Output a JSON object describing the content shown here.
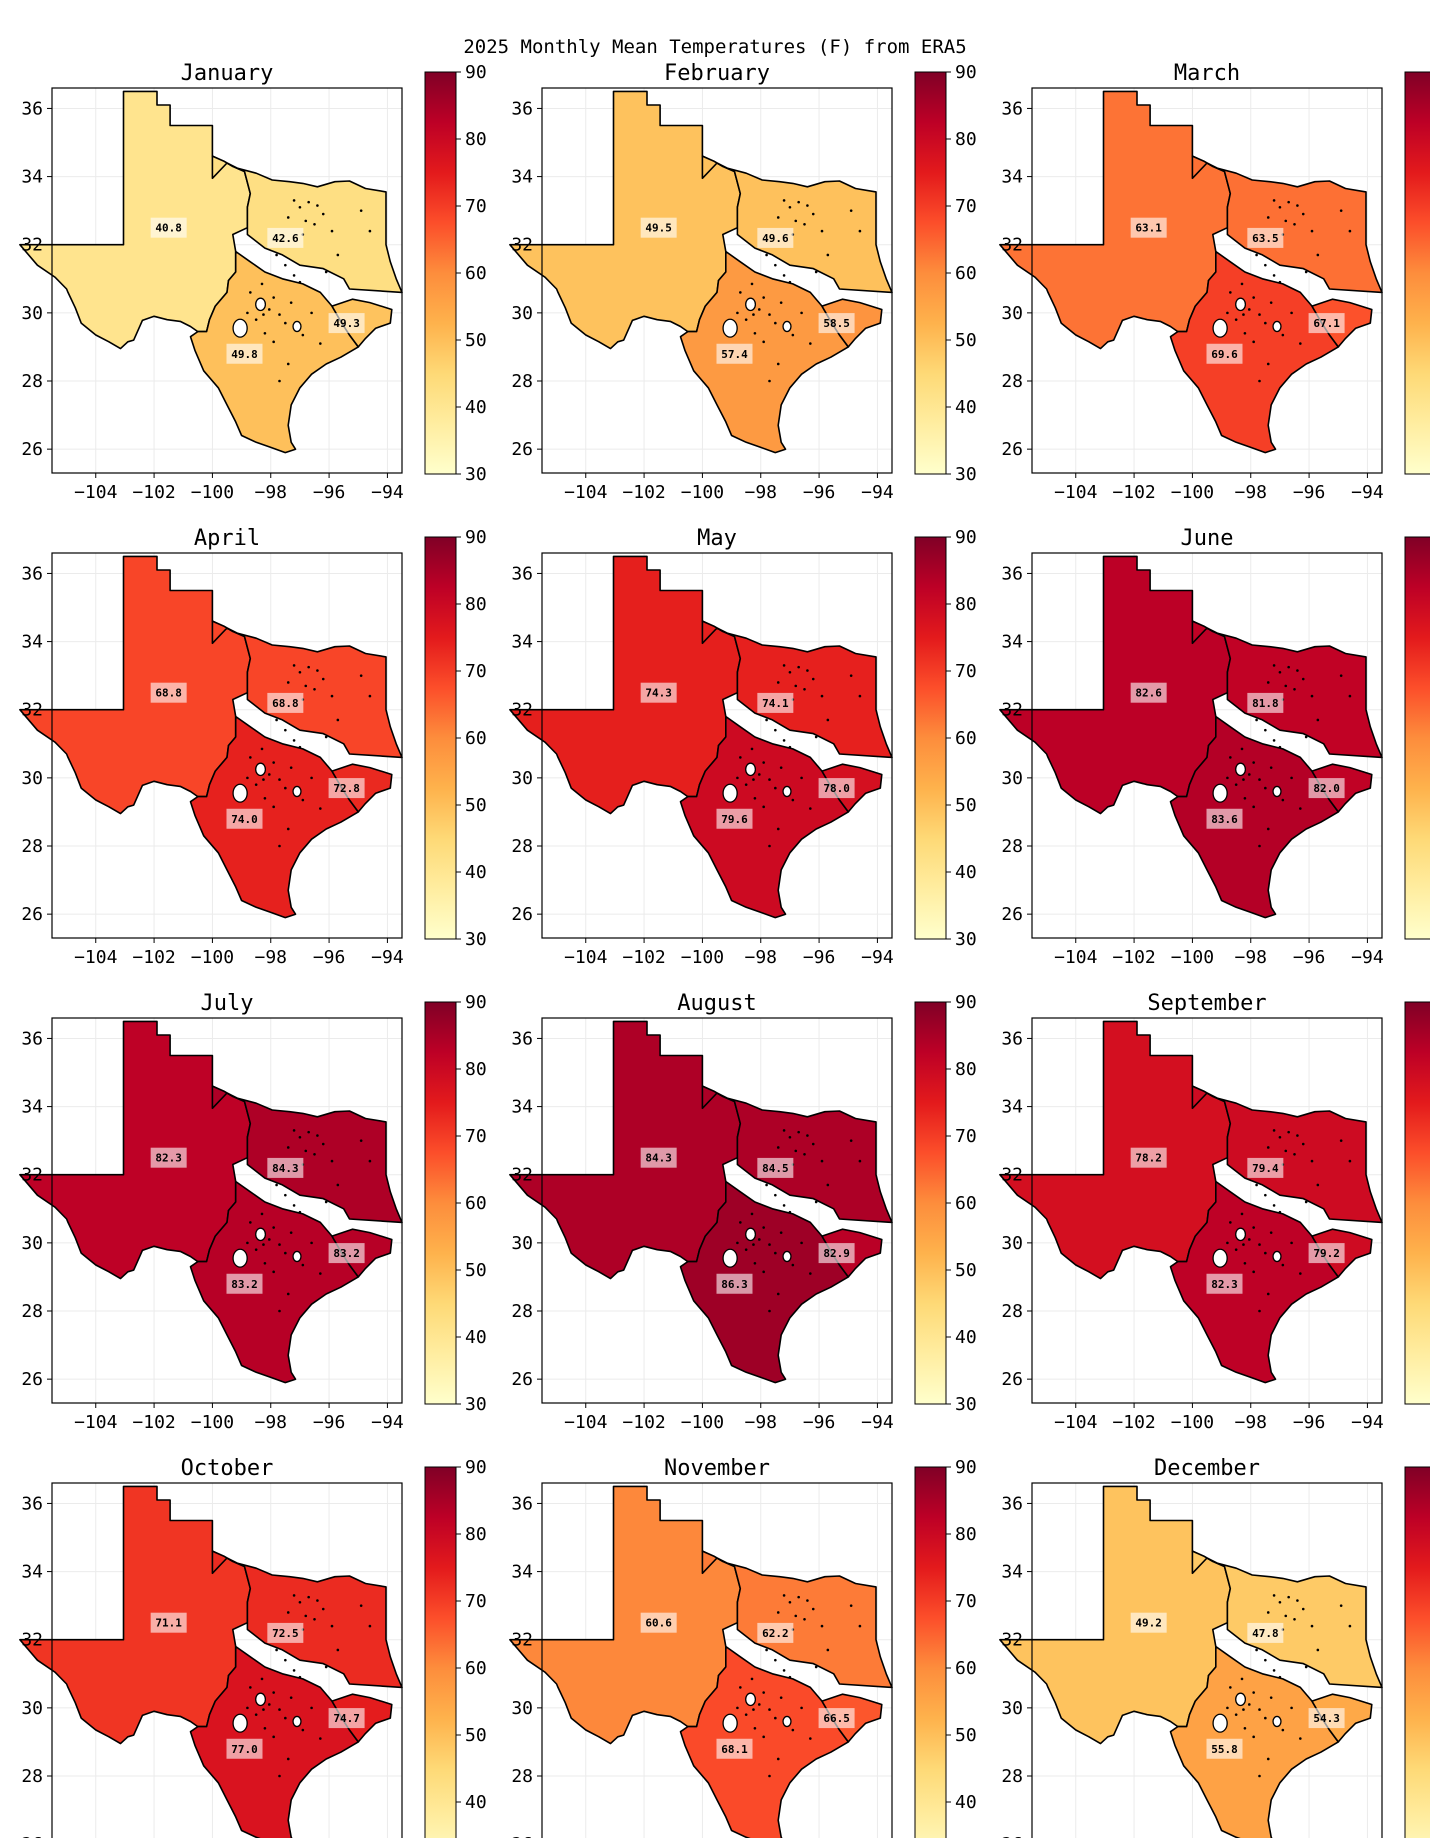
{
  "chart_data": {
    "type": "heatmap",
    "title": "2025 Monthly Mean Temperatures (F) from ERA5",
    "unit": "F",
    "xlim": [
      -105.5,
      -93.5
    ],
    "ylim": [
      25.3,
      36.6
    ],
    "xticks": [
      -104,
      -102,
      -100,
      -98,
      -96,
      -94
    ],
    "yticks": [
      26,
      28,
      30,
      32,
      34,
      36
    ],
    "xtick_labels": [
      "−104",
      "−102",
      "−100",
      "−98",
      "−96",
      "−94"
    ],
    "ytick_labels": [
      "26",
      "28",
      "30",
      "32",
      "34",
      "36"
    ],
    "colorbar": {
      "colormap": "YlOrRd",
      "range": [
        30,
        90
      ],
      "ticks": [
        30,
        40,
        50,
        60,
        70,
        80,
        90
      ],
      "tick_labels": [
        "30",
        "40",
        "50",
        "60",
        "70",
        "80",
        "90"
      ]
    },
    "region_order": [
      "west",
      "northeast",
      "south",
      "east"
    ],
    "panels": [
      {
        "month": "January",
        "values": {
          "west": 40.8,
          "northeast": 42.6,
          "south": 49.8,
          "east": 49.3
        },
        "labels": [
          "40.8",
          "42.6",
          "49.8",
          "49.3"
        ]
      },
      {
        "month": "February",
        "values": {
          "west": 49.5,
          "northeast": 49.6,
          "south": 57.4,
          "east": 58.5
        },
        "labels": [
          "49.5",
          "49.6",
          "57.4",
          "58.5"
        ]
      },
      {
        "month": "March",
        "values": {
          "west": 63.1,
          "northeast": 63.5,
          "south": 69.6,
          "east": 67.1
        },
        "labels": [
          "63.1",
          "63.5",
          "69.6",
          "67.1"
        ]
      },
      {
        "month": "April",
        "values": {
          "west": 68.8,
          "northeast": 68.8,
          "south": 74.0,
          "east": 72.8
        },
        "labels": [
          "68.8",
          "68.8",
          "74.0",
          "72.8"
        ]
      },
      {
        "month": "May",
        "values": {
          "west": 74.3,
          "northeast": 74.1,
          "south": 79.6,
          "east": 78.0
        },
        "labels": [
          "74.3",
          "74.1",
          "79.6",
          "78.0"
        ]
      },
      {
        "month": "June",
        "values": {
          "west": 82.6,
          "northeast": 81.8,
          "south": 83.6,
          "east": 82.0
        },
        "labels": [
          "82.6",
          "81.8",
          "83.6",
          "82.0"
        ]
      },
      {
        "month": "July",
        "values": {
          "west": 82.3,
          "northeast": 84.3,
          "south": 83.2,
          "east": 83.2
        },
        "labels": [
          "82.3",
          "84.3",
          "83.2",
          "83.2"
        ]
      },
      {
        "month": "August",
        "values": {
          "west": 84.3,
          "northeast": 84.5,
          "south": 86.3,
          "east": 82.9
        },
        "labels": [
          "84.3",
          "84.5",
          "86.3",
          "82.9"
        ]
      },
      {
        "month": "September",
        "values": {
          "west": 78.2,
          "northeast": 79.4,
          "south": 82.3,
          "east": 79.2
        },
        "labels": [
          "78.2",
          "79.4",
          "82.3",
          "79.2"
        ]
      },
      {
        "month": "October",
        "values": {
          "west": 71.1,
          "northeast": 72.5,
          "south": 77.0,
          "east": 74.7
        },
        "labels": [
          "71.1",
          "72.5",
          "77.0",
          "74.7"
        ]
      },
      {
        "month": "November",
        "values": {
          "west": 60.6,
          "northeast": 62.2,
          "south": 68.1,
          "east": 66.5
        },
        "labels": [
          "60.6",
          "62.2",
          "68.1",
          "66.5"
        ]
      },
      {
        "month": "December",
        "values": {
          "west": 49.2,
          "northeast": 47.8,
          "south": 55.8,
          "east": 54.3
        },
        "labels": [
          "49.2",
          "47.8",
          "55.8",
          "54.3"
        ]
      }
    ]
  }
}
